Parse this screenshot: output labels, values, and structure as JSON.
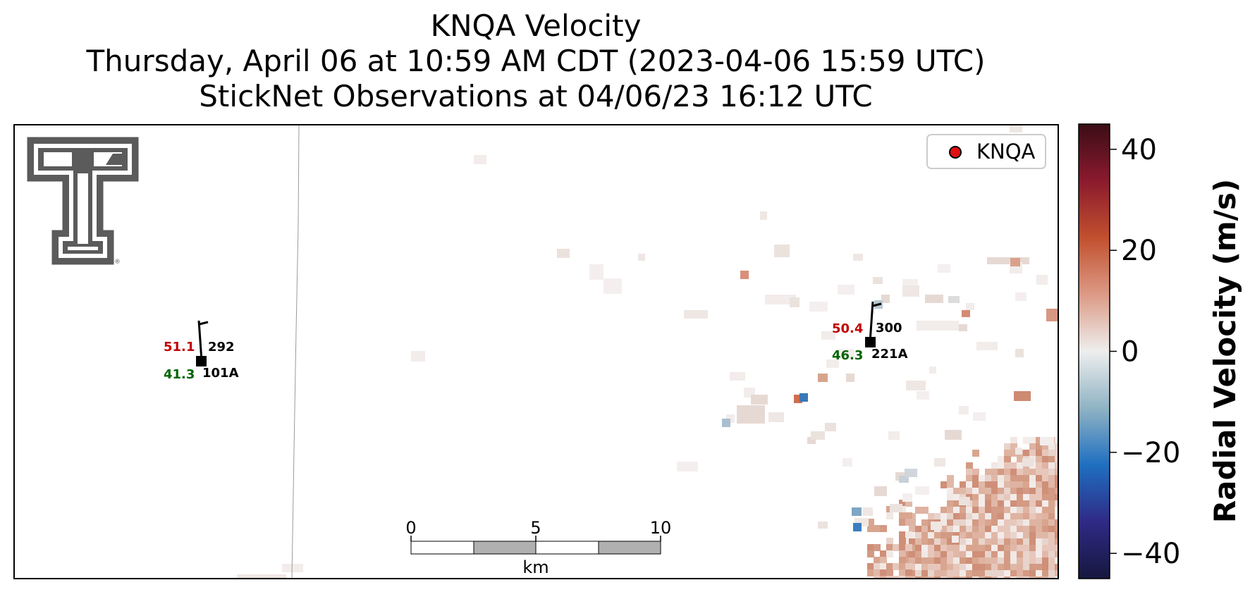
{
  "chart_data": {
    "type": "heatmap",
    "title": "KNQA Velocity",
    "subtitle_lines": [
      "Thursday, April 06 at 10:59 AM CDT (2023-04-06 15:59 UTC)",
      "StickNet Observations at 04/06/23 16:12 UTC"
    ],
    "legend": {
      "label": "KNQA",
      "marker_color": "#e01010",
      "placement": "upper right"
    },
    "colorbar": {
      "label": "Radial Velocity (m/s)",
      "range": [
        -45,
        45
      ],
      "ticks": [
        40,
        20,
        0,
        -20,
        -40
      ],
      "tick_labels": [
        "40",
        "20",
        "0",
        "−20",
        "−40"
      ],
      "colors": [
        "#16173e",
        "#2f2a86",
        "#1f6fc0",
        "#8fb3c4",
        "#eeeeee",
        "#dc9a85",
        "#c1502e",
        "#8b1a2e",
        "#3a0d16"
      ]
    },
    "scale_bar": {
      "unit": "km",
      "tick_labels": [
        "0",
        "5",
        "10"
      ],
      "fill": "#b0b0b0"
    },
    "stations": [
      {
        "id": "101A",
        "temperature": "51.1",
        "dewpoint": "41.3",
        "pressure": "292",
        "temp_color": "#c00000",
        "dew_color": "#006400"
      },
      {
        "id": "221A",
        "temperature": "50.4",
        "dewpoint": "46.3",
        "pressure": "300",
        "temp_color": "#c00000",
        "dew_color": "#006400"
      }
    ],
    "grid": false
  },
  "logo": {
    "name": "texas-tech-double-t-logo",
    "registered_mark": "®"
  }
}
